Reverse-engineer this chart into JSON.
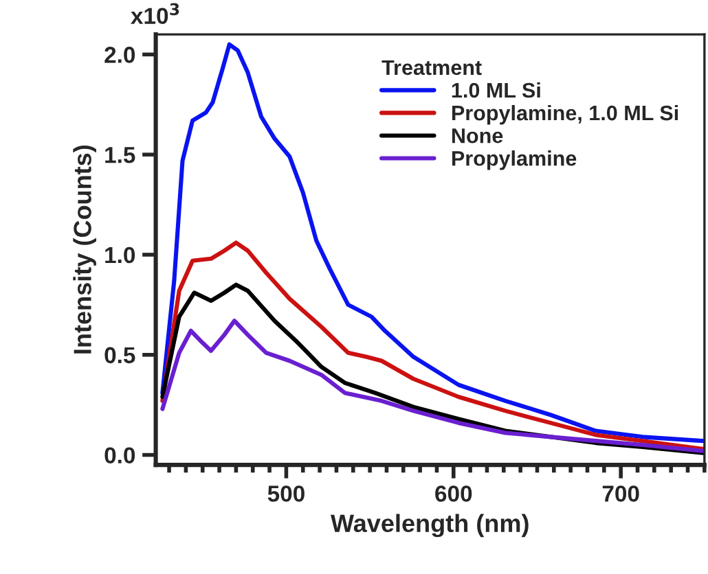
{
  "chart_data": {
    "type": "line",
    "xlabel": "Wavelength (nm)",
    "ylabel": "Intensity (Counts)",
    "legend_title": "Treatment",
    "legend": "top right",
    "grid": false,
    "marker": "none",
    "line_style": "solid",
    "annotations": [
      "x10$^{3}$"
    ],
    "xlim": [
      422,
      750
    ],
    "ylim": [
      -0.05,
      2.1
    ],
    "xticks": [
      {
        "value": 430,
        "label": null
      },
      {
        "value": 440,
        "label": null
      },
      {
        "value": 450,
        "label": null
      },
      {
        "value": 460,
        "label": null
      },
      {
        "value": 470,
        "label": null
      },
      {
        "value": 480,
        "label": null
      },
      {
        "value": 490,
        "label": null
      },
      500,
      {
        "value": 510,
        "label": null
      },
      {
        "value": 520,
        "label": null
      },
      {
        "value": 530,
        "label": null
      },
      {
        "value": 540,
        "label": null
      },
      {
        "value": 550,
        "label": null
      },
      {
        "value": 560,
        "label": null
      },
      {
        "value": 570,
        "label": null
      },
      {
        "value": 580,
        "label": null
      },
      {
        "value": 590,
        "label": null
      },
      600,
      {
        "value": 610,
        "label": null
      },
      {
        "value": 620,
        "label": null
      },
      {
        "value": 630,
        "label": null
      },
      {
        "value": 640,
        "label": null
      },
      {
        "value": 650,
        "label": null
      },
      {
        "value": 660,
        "label": null
      },
      {
        "value": 670,
        "label": null
      },
      {
        "value": 680,
        "label": null
      },
      {
        "value": 690,
        "label": null
      },
      700,
      {
        "value": 710,
        "label": null
      },
      {
        "value": 720,
        "label": null
      },
      {
        "value": 730,
        "label": null
      },
      {
        "value": 740,
        "label": null
      },
      {
        "value": 750,
        "label": null
      }
    ],
    "yticks": [
      {
        "value": 0.0,
        "label": "0.0"
      },
      {
        "value": 0.5,
        "label": "0.5"
      },
      {
        "value": 1.0,
        "label": "1.0"
      },
      {
        "value": 1.5,
        "label": "1.5"
      },
      {
        "value": 2.0,
        "label": "2.0"
      }
    ],
    "series": [
      {
        "name": "1.0 ML Si",
        "color": "#0a14f0",
        "x": [
          426,
          433,
          438,
          444,
          452,
          456,
          462,
          466,
          471,
          477,
          485,
          493,
          502,
          510,
          518,
          526,
          537,
          551,
          559,
          576,
          603,
          631,
          658,
          685,
          713,
          749
        ],
        "values": [
          0.31,
          0.87,
          1.47,
          1.67,
          1.71,
          1.76,
          1.93,
          2.05,
          2.02,
          1.91,
          1.69,
          1.58,
          1.49,
          1.31,
          1.07,
          0.93,
          0.75,
          0.69,
          0.62,
          0.49,
          0.35,
          0.27,
          0.2,
          0.12,
          0.09,
          0.07
        ]
      },
      {
        "name": "Propylamine, 1.0 ML Si",
        "color": "#cc1111",
        "x": [
          426,
          436,
          444,
          455,
          463,
          470,
          477,
          488,
          502,
          521,
          537,
          548,
          557,
          576,
          603,
          631,
          658,
          685,
          713,
          749
        ],
        "values": [
          0.27,
          0.82,
          0.97,
          0.98,
          1.02,
          1.06,
          1.02,
          0.91,
          0.78,
          0.64,
          0.51,
          0.49,
          0.47,
          0.38,
          0.29,
          0.22,
          0.16,
          0.1,
          0.07,
          0.03
        ]
      },
      {
        "name": "None",
        "color": "#000000",
        "x": [
          426,
          436,
          445,
          455,
          463,
          470,
          477,
          493,
          507,
          521,
          535,
          553,
          576,
          603,
          631,
          658,
          685,
          713,
          749
        ],
        "values": [
          0.29,
          0.69,
          0.81,
          0.77,
          0.81,
          0.85,
          0.82,
          0.67,
          0.56,
          0.44,
          0.36,
          0.31,
          0.24,
          0.18,
          0.12,
          0.09,
          0.06,
          0.04,
          0.01
        ]
      },
      {
        "name": "Propylamine",
        "color": "#6a1fd0",
        "x": [
          426,
          436,
          443,
          450,
          455,
          463,
          469,
          477,
          488,
          502,
          521,
          535,
          557,
          576,
          603,
          631,
          658,
          685,
          713,
          749
        ],
        "values": [
          0.23,
          0.51,
          0.62,
          0.56,
          0.52,
          0.6,
          0.67,
          0.6,
          0.51,
          0.47,
          0.4,
          0.31,
          0.27,
          0.22,
          0.16,
          0.11,
          0.09,
          0.07,
          0.05,
          0.02
        ]
      }
    ]
  }
}
